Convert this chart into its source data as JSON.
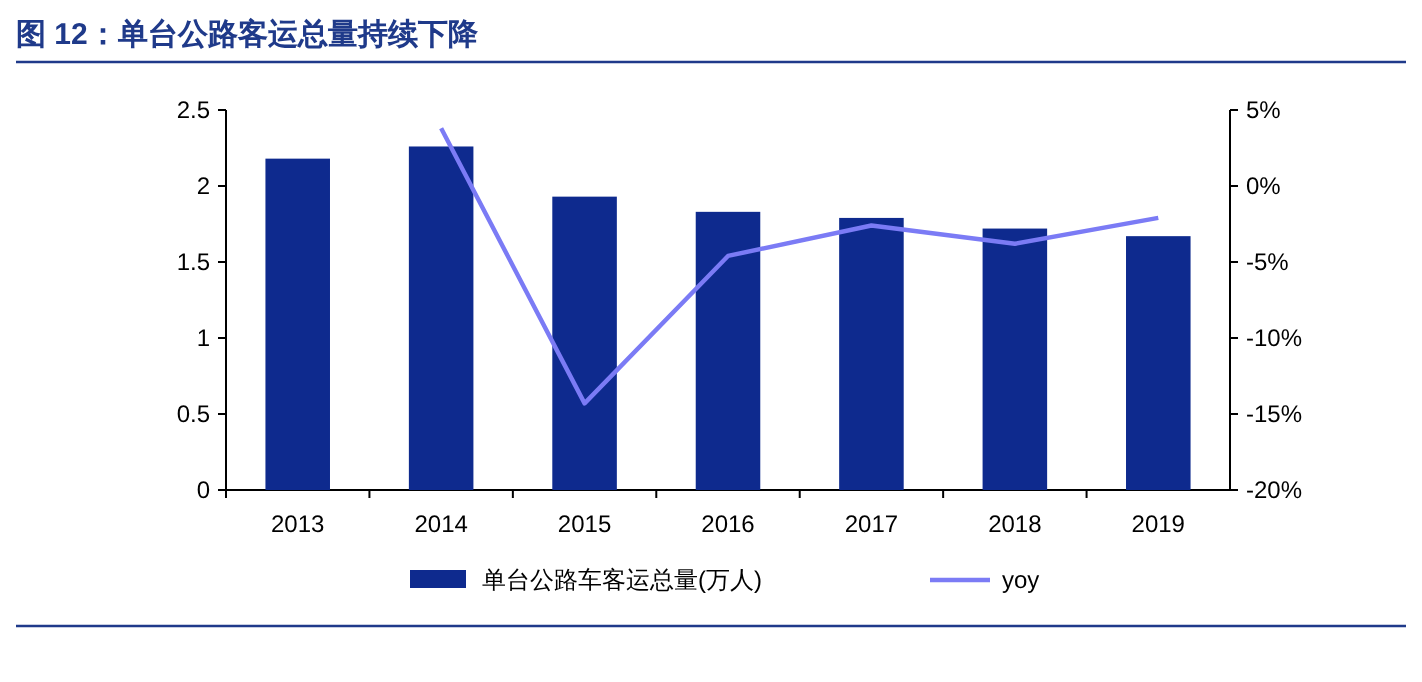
{
  "chart_data": {
    "type": "bar",
    "title": "图 12：单台公路客运总量持续下降",
    "categories": [
      "2013",
      "2014",
      "2015",
      "2016",
      "2017",
      "2018",
      "2019"
    ],
    "series": [
      {
        "name": "单台公路车客运总量(万人)",
        "color": "#0e2a8e",
        "values": [
          2.18,
          2.26,
          1.93,
          1.83,
          1.79,
          1.72,
          1.67
        ]
      },
      {
        "name": "yoy",
        "type": "line",
        "axis": "y2",
        "color": "#7b7bf5",
        "values": [
          null,
          3.8,
          -14.3,
          -4.6,
          -2.6,
          -3.8,
          -2.1
        ]
      }
    ],
    "ylim": [
      0,
      2.5
    ],
    "yticks": [
      0,
      0.5,
      1,
      1.5,
      2,
      2.5
    ],
    "y2lim": [
      -20,
      5
    ],
    "y2ticks": [
      {
        "value": -20,
        "label": "-20%"
      },
      {
        "value": -15,
        "label": "-15%"
      },
      {
        "value": -10,
        "label": "-10%"
      },
      {
        "value": -5,
        "label": "-5%"
      },
      {
        "value": 0,
        "label": "0%"
      },
      {
        "value": 5,
        "label": "5%"
      }
    ],
    "legend": "bottom",
    "grid": false,
    "marker": "none",
    "line_style": "solid"
  }
}
